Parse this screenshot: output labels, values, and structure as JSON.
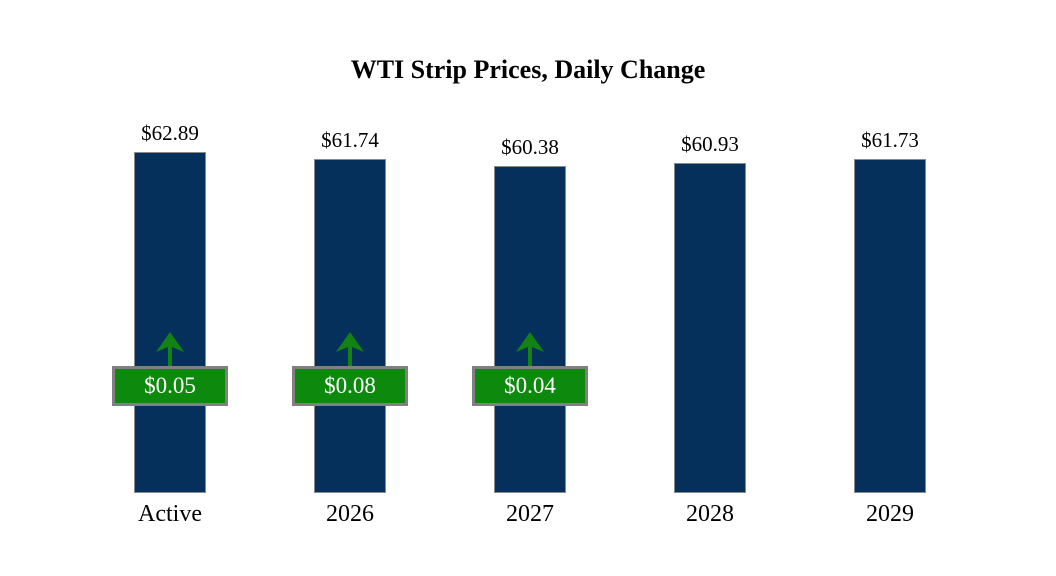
{
  "chart_data": {
    "type": "bar",
    "title": "WTI Strip Prices, Daily Change",
    "categories": [
      "Active",
      "2026",
      "2027",
      "2028",
      "2029"
    ],
    "values": [
      62.89,
      61.74,
      60.38,
      60.93,
      61.73
    ],
    "value_labels": [
      "$62.89",
      "$61.74",
      "$60.38",
      "$60.93",
      "$61.73"
    ],
    "daily_changes": [
      0.05,
      0.08,
      0.04,
      null,
      null
    ],
    "change_labels": [
      "$0.05",
      "$0.08",
      "$0.04",
      null,
      null
    ],
    "change_directions": [
      "up",
      "up",
      "up",
      null,
      null
    ],
    "xlabel": "",
    "ylabel": "",
    "ylim": [
      0,
      68
    ],
    "grid": false,
    "legend": null,
    "colors": {
      "bar_fill": "#06305c",
      "bar_border": "#8a8a8a",
      "badge_fill": "#0d8a0d",
      "badge_border": "#808080",
      "badge_text": "#ffffff",
      "arrow": "#128212",
      "title_text": "#000000",
      "label_text": "#000000",
      "background": "#ffffff"
    }
  }
}
